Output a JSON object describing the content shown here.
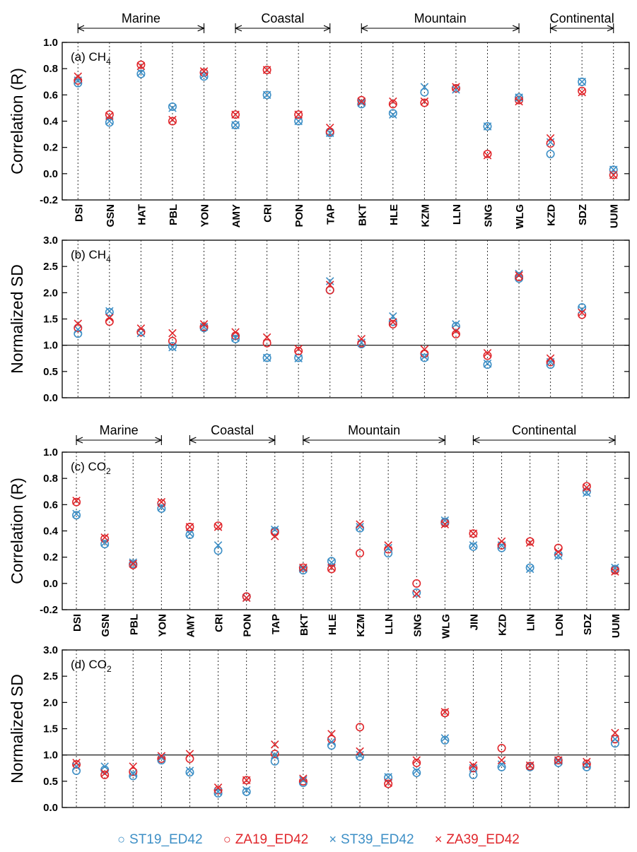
{
  "colors": {
    "ST": "#3d8fc6",
    "ZA": "#e0262b",
    "axis": "#000000"
  },
  "legend": [
    {
      "label": "ST19_ED42",
      "marker": "circle",
      "color": "#3d8fc6"
    },
    {
      "label": "ZA19_ED42",
      "marker": "circle",
      "color": "#e0262b"
    },
    {
      "label": "ST39_ED42",
      "marker": "cross",
      "color": "#3d8fc6"
    },
    {
      "label": "ZA39_ED42",
      "marker": "cross",
      "color": "#e0262b"
    }
  ],
  "chart_data": [
    {
      "type": "scatter",
      "panel_label": "(a) CH",
      "panel_sub": "4",
      "ylabel": "Correlation (R)",
      "ylim": [
        -0.2,
        1.0
      ],
      "yticks": [
        "1.0",
        "0.8",
        "0.6",
        "0.4",
        "0.2",
        "0.0",
        "-0.2"
      ],
      "show_xlabels": true,
      "reference_line": null,
      "categories": [
        "DSI",
        "GSN",
        "HAT",
        "PBL",
        "YON",
        "AMY",
        "CRI",
        "PON",
        "TAP",
        "BKT",
        "HLE",
        "KZM",
        "LLN",
        "SNG",
        "WLG",
        "KZD",
        "SDZ",
        "UUM"
      ],
      "groups": [
        {
          "name": "Marine",
          "from": 0,
          "to": 4
        },
        {
          "name": "Coastal",
          "from": 5,
          "to": 8
        },
        {
          "name": "Mountain",
          "from": 9,
          "to": 14
        },
        {
          "name": "Continental",
          "from": 15,
          "to": 17
        }
      ],
      "series": [
        {
          "name": "ST19_ED42",
          "values": [
            0.69,
            0.39,
            0.76,
            0.51,
            0.74,
            0.37,
            0.6,
            0.4,
            0.31,
            0.53,
            0.46,
            0.62,
            0.65,
            0.36,
            0.58,
            0.15,
            0.7,
            0.03
          ]
        },
        {
          "name": "ZA19_ED42",
          "values": [
            0.71,
            0.45,
            0.83,
            0.4,
            0.77,
            0.45,
            0.79,
            0.45,
            0.32,
            0.56,
            0.53,
            0.54,
            0.65,
            0.15,
            0.56,
            0.23,
            0.63,
            -0.01
          ]
        },
        {
          "name": "ST39_ED42",
          "values": [
            0.71,
            0.4,
            0.77,
            0.5,
            0.75,
            0.37,
            0.6,
            0.4,
            0.31,
            0.54,
            0.45,
            0.66,
            0.64,
            0.36,
            0.58,
            0.24,
            0.7,
            0.03
          ]
        },
        {
          "name": "ZA39_ED42",
          "values": [
            0.74,
            0.44,
            0.82,
            0.41,
            0.78,
            0.45,
            0.79,
            0.45,
            0.35,
            0.55,
            0.55,
            0.55,
            0.66,
            0.14,
            0.55,
            0.27,
            0.62,
            -0.01
          ]
        }
      ]
    },
    {
      "type": "scatter",
      "panel_label": "(b) CH",
      "panel_sub": "4",
      "ylabel": "Normalized SD",
      "ylim": [
        0.0,
        3.0
      ],
      "yticks": [
        "3.0",
        "2.5",
        "2.0",
        "1.5",
        "1.0",
        "0.5",
        "0.0"
      ],
      "show_xlabels": false,
      "reference_line": 1.0,
      "categories": [
        "DSI",
        "GSN",
        "HAT",
        "PBL",
        "YON",
        "AMY",
        "CRI",
        "PON",
        "TAP",
        "BKT",
        "HLE",
        "KZM",
        "LLN",
        "SNG",
        "WLG",
        "KZD",
        "SDZ",
        "UUM"
      ],
      "groups": [],
      "series": [
        {
          "name": "ST19_ED42",
          "values": [
            1.22,
            1.63,
            1.25,
            0.98,
            1.33,
            1.12,
            0.76,
            0.76,
            2.05,
            1.02,
            1.45,
            0.76,
            1.36,
            0.63,
            2.27,
            0.63,
            1.72,
            null
          ]
        },
        {
          "name": "ZA19_ED42",
          "values": [
            1.33,
            1.45,
            1.25,
            1.08,
            1.35,
            1.18,
            1.04,
            0.89,
            2.05,
            1.04,
            1.4,
            0.84,
            1.21,
            0.8,
            2.3,
            0.68,
            1.58,
            null
          ]
        },
        {
          "name": "ST39_ED42",
          "values": [
            1.3,
            1.65,
            1.23,
            0.96,
            1.35,
            1.14,
            0.76,
            0.75,
            2.22,
            1.05,
            1.55,
            0.78,
            1.4,
            0.65,
            2.36,
            0.68,
            1.68,
            null
          ]
        },
        {
          "name": "ZA39_ED42",
          "values": [
            1.41,
            1.52,
            1.32,
            1.23,
            1.4,
            1.25,
            1.15,
            0.93,
            2.15,
            1.12,
            1.44,
            0.92,
            1.27,
            0.85,
            2.33,
            0.75,
            1.62,
            null
          ]
        }
      ]
    },
    {
      "type": "scatter",
      "panel_label": "(c) CO",
      "panel_sub": "2",
      "ylabel": "Correlation (R)",
      "ylim": [
        -0.2,
        1.0
      ],
      "yticks": [
        "1.0",
        "0.8",
        "0.6",
        "0.4",
        "0.2",
        "0.0",
        "-0.2"
      ],
      "show_xlabels": true,
      "reference_line": null,
      "categories": [
        "DSI",
        "GSN",
        "PBL",
        "YON",
        "AMY",
        "CRI",
        "PON",
        "TAP",
        "BKT",
        "HLE",
        "KZM",
        "LLN",
        "SNG",
        "WLG",
        "JIN",
        "KZD",
        "LIN",
        "LON",
        "SDZ",
        "UUM"
      ],
      "groups": [
        {
          "name": "Marine",
          "from": 0,
          "to": 3
        },
        {
          "name": "Coastal",
          "from": 4,
          "to": 7
        },
        {
          "name": "Mountain",
          "from": 8,
          "to": 13
        },
        {
          "name": "Continental",
          "from": 14,
          "to": 19
        }
      ],
      "series": [
        {
          "name": "ST19_ED42",
          "values": [
            0.52,
            0.3,
            0.15,
            0.57,
            0.37,
            0.25,
            -0.1,
            0.4,
            0.1,
            0.17,
            0.42,
            0.23,
            -0.07,
            0.47,
            0.28,
            0.27,
            0.12,
            0.22,
            0.7,
            0.11
          ]
        },
        {
          "name": "ZA19_ED42",
          "values": [
            0.62,
            0.34,
            0.14,
            0.61,
            0.43,
            0.44,
            -0.1,
            0.39,
            0.12,
            0.11,
            0.23,
            0.26,
            0.0,
            0.46,
            0.38,
            0.29,
            0.32,
            0.27,
            0.74,
            0.1
          ]
        },
        {
          "name": "ST39_ED42",
          "values": [
            0.53,
            0.31,
            0.16,
            0.58,
            0.38,
            0.29,
            -0.11,
            0.41,
            0.11,
            0.16,
            0.43,
            0.27,
            -0.08,
            0.48,
            0.29,
            0.29,
            0.11,
            0.21,
            0.69,
            0.12
          ]
        },
        {
          "name": "ZA39_ED42",
          "values": [
            0.63,
            0.35,
            0.15,
            0.62,
            0.43,
            0.43,
            -0.11,
            0.36,
            0.12,
            0.12,
            0.45,
            0.29,
            -0.08,
            0.45,
            0.38,
            0.32,
            0.31,
            0.24,
            0.73,
            0.09
          ]
        }
      ]
    },
    {
      "type": "scatter",
      "panel_label": "(d) CO",
      "panel_sub": "2",
      "ylabel": "Normalized SD",
      "ylim": [
        0.0,
        3.0
      ],
      "yticks": [
        "3.0",
        "2.5",
        "2.0",
        "1.5",
        "1.0",
        "0.5",
        "0.0"
      ],
      "show_xlabels": false,
      "reference_line": 1.0,
      "categories": [
        "DSI",
        "GSN",
        "PBL",
        "YON",
        "AMY",
        "CRI",
        "PON",
        "TAP",
        "BKT",
        "HLE",
        "KZM",
        "LLN",
        "SNG",
        "WLG",
        "JIN",
        "KZD",
        "LIN",
        "LON",
        "SDZ",
        "UUM"
      ],
      "groups": [],
      "series": [
        {
          "name": "ST19_ED42",
          "values": [
            0.7,
            0.72,
            0.6,
            0.9,
            0.67,
            0.27,
            0.3,
            0.88,
            0.47,
            1.18,
            0.97,
            0.57,
            0.66,
            1.28,
            0.62,
            0.77,
            0.77,
            0.85,
            0.77,
            1.22
          ]
        },
        {
          "name": "ZA19_ED42",
          "values": [
            0.82,
            0.62,
            0.68,
            0.93,
            0.93,
            0.33,
            0.52,
            1.02,
            0.5,
            1.3,
            1.53,
            0.45,
            0.85,
            1.8,
            0.75,
            1.13,
            0.79,
            0.9,
            0.83,
            1.3
          ]
        },
        {
          "name": "ST39_ED42",
          "values": [
            0.78,
            0.78,
            0.65,
            0.95,
            0.7,
            0.3,
            0.33,
            1.0,
            0.52,
            1.25,
            1.0,
            0.58,
            0.7,
            1.32,
            0.75,
            0.82,
            0.8,
            0.88,
            0.8,
            1.3
          ]
        },
        {
          "name": "ZA39_ED42",
          "values": [
            0.85,
            0.65,
            0.78,
            0.98,
            1.02,
            0.38,
            0.52,
            1.2,
            0.55,
            1.4,
            1.07,
            0.47,
            0.9,
            1.82,
            0.8,
            0.9,
            0.8,
            0.9,
            0.87,
            1.42
          ]
        }
      ]
    }
  ]
}
